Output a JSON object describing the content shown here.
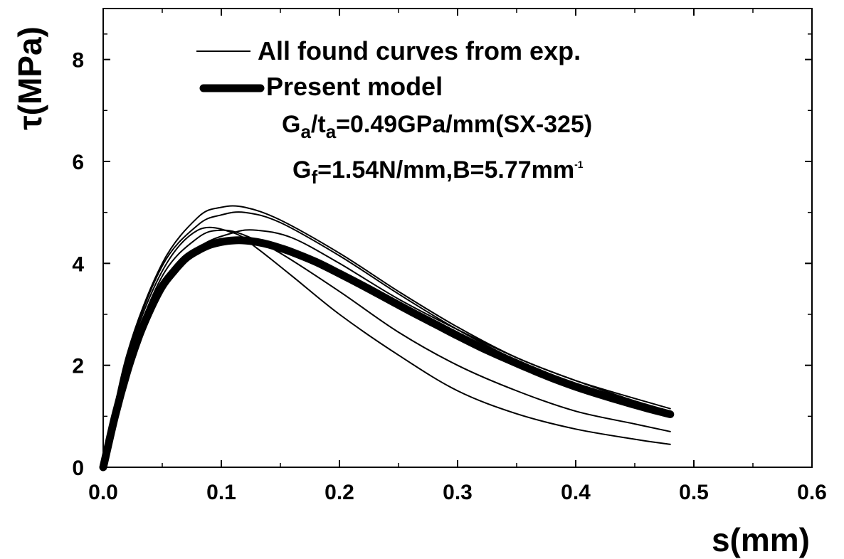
{
  "chart_data": {
    "type": "line",
    "xlabel": "s(mm)",
    "ylabel": "τ(MPa)",
    "xlim": [
      0.0,
      0.6
    ],
    "ylim": [
      0,
      9
    ],
    "x_ticks": [
      "0.0",
      "0.1",
      "0.2",
      "0.3",
      "0.4",
      "0.5",
      "0.6"
    ],
    "y_ticks": [
      "0",
      "2",
      "4",
      "6",
      "8"
    ],
    "legend": {
      "placement": "top-center",
      "entries": [
        {
          "label": "All found curves from exp.",
          "style": "thin"
        },
        {
          "label": "Present model",
          "style": "thick"
        }
      ]
    },
    "annotations": {
      "line1": {
        "G": "G",
        "a1": "a",
        "slash_t": "/t",
        "a2": "a",
        "rest": "=0.49GPa/mm(SX-325)"
      },
      "line2": {
        "G": "G",
        "f": "f",
        "rest": "=1.54N/mm,B=5.77mm",
        "exp": "-1"
      }
    },
    "series": [
      {
        "name": "All found curves from exp.",
        "style": "thin",
        "color": "#000000",
        "x": [
          0,
          0.02,
          0.05,
          0.08,
          0.11,
          0.13,
          0.16,
          0.2,
          0.25,
          0.3,
          0.35,
          0.4,
          0.45,
          0.48
        ],
        "y": [
          0,
          2.1,
          3.85,
          4.65,
          4.6,
          4.3,
          3.75,
          3.0,
          2.2,
          1.5,
          1.05,
          0.75,
          0.55,
          0.45
        ]
      },
      {
        "name": "All found curves from exp.",
        "style": "thin",
        "color": "#000000",
        "x": [
          0,
          0.02,
          0.05,
          0.08,
          0.1,
          0.12,
          0.15,
          0.2,
          0.25,
          0.3,
          0.35,
          0.4,
          0.45,
          0.48
        ],
        "y": [
          0,
          2.0,
          3.75,
          4.5,
          4.65,
          4.55,
          4.2,
          3.45,
          2.65,
          2.0,
          1.5,
          1.1,
          0.85,
          0.7
        ]
      },
      {
        "name": "All found curves from exp.",
        "style": "thin",
        "color": "#000000",
        "x": [
          0,
          0.02,
          0.05,
          0.08,
          0.1,
          0.12,
          0.15,
          0.2,
          0.25,
          0.3,
          0.35,
          0.4,
          0.45,
          0.48
        ],
        "y": [
          0,
          2.2,
          4.0,
          4.9,
          5.1,
          5.1,
          4.85,
          4.2,
          3.45,
          2.75,
          2.15,
          1.7,
          1.3,
          1.1
        ]
      },
      {
        "name": "All found curves from exp.",
        "style": "thin",
        "color": "#000000",
        "x": [
          0,
          0.02,
          0.05,
          0.08,
          0.1,
          0.12,
          0.15,
          0.2,
          0.25,
          0.3,
          0.35,
          0.4,
          0.45,
          0.48
        ],
        "y": [
          0,
          2.15,
          3.95,
          4.75,
          4.95,
          5.0,
          4.8,
          4.15,
          3.4,
          2.7,
          2.1,
          1.65,
          1.3,
          1.1
        ]
      },
      {
        "name": "All found curves from exp.",
        "style": "thin",
        "color": "#000000",
        "x": [
          0,
          0.02,
          0.05,
          0.08,
          0.11,
          0.13,
          0.16,
          0.2,
          0.25,
          0.3,
          0.35,
          0.4,
          0.45,
          0.48
        ],
        "y": [
          0,
          1.85,
          3.5,
          4.3,
          4.6,
          4.65,
          4.5,
          4.0,
          3.3,
          2.7,
          2.15,
          1.7,
          1.35,
          1.15
        ]
      },
      {
        "name": "Present model",
        "style": "thick",
        "color": "#000000",
        "x": [
          0,
          0.01,
          0.02,
          0.03,
          0.04,
          0.05,
          0.06,
          0.07,
          0.08,
          0.09,
          0.1,
          0.11,
          0.12,
          0.13,
          0.14,
          0.15,
          0.16,
          0.18,
          0.2,
          0.22,
          0.24,
          0.26,
          0.28,
          0.3,
          0.32,
          0.34,
          0.36,
          0.38,
          0.4,
          0.42,
          0.44,
          0.46,
          0.48
        ],
        "y": [
          0,
          1.0,
          1.85,
          2.55,
          3.1,
          3.55,
          3.85,
          4.1,
          4.25,
          4.36,
          4.42,
          4.45,
          4.45,
          4.42,
          4.37,
          4.3,
          4.22,
          4.03,
          3.8,
          3.56,
          3.31,
          3.06,
          2.82,
          2.58,
          2.35,
          2.14,
          1.94,
          1.75,
          1.58,
          1.43,
          1.29,
          1.16,
          1.04
        ]
      }
    ]
  }
}
